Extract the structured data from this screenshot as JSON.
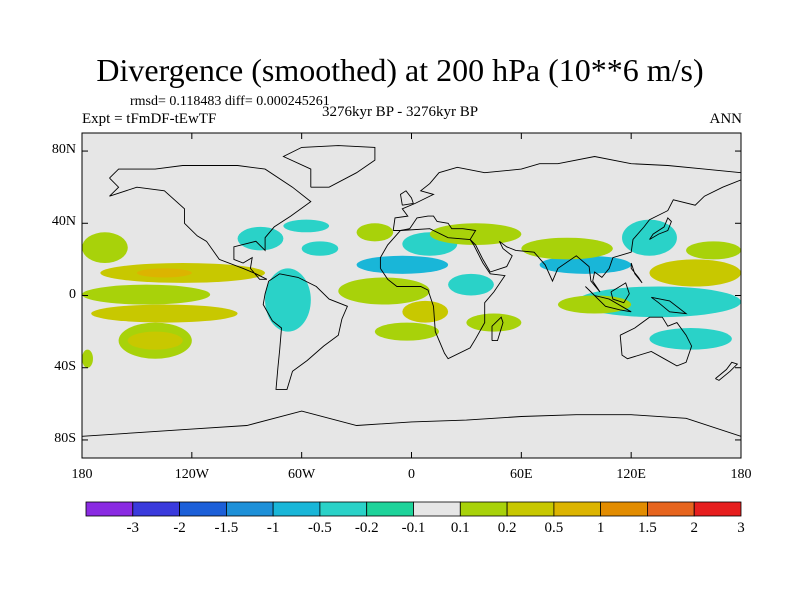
{
  "chart_data": {
    "type": "heatmap",
    "title": "Divergence (smoothed) at 200 hPa (10**6 m/s)",
    "stats": "rmsd= 0.118483  diff= 0.000245261",
    "experiment": "Expt = tFmDF-tEwTF",
    "period": "3276kyr BP - 3276kyr BP",
    "season": "ANN",
    "xlim": [
      -180,
      180
    ],
    "ylim": [
      -90,
      90
    ],
    "x_ticks": [
      {
        "value": -180,
        "label": "180"
      },
      {
        "value": -120,
        "label": "120W"
      },
      {
        "value": -60,
        "label": "60W"
      },
      {
        "value": 0,
        "label": "0"
      },
      {
        "value": 60,
        "label": "60E"
      },
      {
        "value": 120,
        "label": "120E"
      },
      {
        "value": 180,
        "label": "180"
      }
    ],
    "y_ticks": [
      {
        "value": 80,
        "label": "80N"
      },
      {
        "value": 40,
        "label": "40N"
      },
      {
        "value": 0,
        "label": "0"
      },
      {
        "value": -40,
        "label": "40S"
      },
      {
        "value": -80,
        "label": "80S"
      }
    ],
    "colorbar": {
      "labels": [
        "-3",
        "-2",
        "-1.5",
        "-1",
        "-0.5",
        "-0.2",
        "-0.1",
        "0.1",
        "0.2",
        "0.5",
        "1",
        "1.5",
        "2",
        "3"
      ],
      "colors": [
        "#8a2be2",
        "#3a3adc",
        "#1c5fd8",
        "#1e90d8",
        "#19b6d8",
        "#2ad2c8",
        "#1ed39a",
        "#e6e6e6",
        "#a8d20a",
        "#c8c800",
        "#dcb400",
        "#e28c00",
        "#e6641e",
        "#e61e1e"
      ]
    },
    "missing_color": "#e6e6e6",
    "anomaly_regions": [
      {
        "class": 1,
        "lon_min": -180,
        "lon_max": -155,
        "lat_min": 18,
        "lat_max": 35
      },
      {
        "class": 2,
        "lon_min": -170,
        "lon_max": -80,
        "lat_min": 7,
        "lat_max": 18
      },
      {
        "class": 3,
        "lon_min": -150,
        "lon_max": -120,
        "lat_min": 10,
        "lat_max": 15
      },
      {
        "class": 1,
        "lon_min": -180,
        "lon_max": -110,
        "lat_min": -5,
        "lat_max": 6
      },
      {
        "class": 2,
        "lon_min": -175,
        "lon_max": -95,
        "lat_min": -15,
        "lat_max": -5
      },
      {
        "class": 1,
        "lon_min": -160,
        "lon_max": -120,
        "lat_min": -35,
        "lat_max": -15
      },
      {
        "class": 2,
        "lon_min": -155,
        "lon_max": -125,
        "lat_min": -30,
        "lat_max": -20
      },
      {
        "class": 1,
        "lon_min": -180,
        "lon_max": -174,
        "lat_min": -40,
        "lat_max": -30
      },
      {
        "class": -1,
        "lon_min": -95,
        "lon_max": -70,
        "lat_min": 25,
        "lat_max": 38
      },
      {
        "class": -1,
        "lon_min": -70,
        "lon_max": -45,
        "lat_min": 35,
        "lat_max": 42
      },
      {
        "class": -1,
        "lon_min": -60,
        "lon_max": -40,
        "lat_min": 22,
        "lat_max": 30
      },
      {
        "class": -1,
        "lon_min": -80,
        "lon_max": -55,
        "lat_min": -20,
        "lat_max": 15
      },
      {
        "class": 1,
        "lon_min": -40,
        "lon_max": 10,
        "lat_min": -5,
        "lat_max": 10
      },
      {
        "class": -2,
        "lon_min": -30,
        "lon_max": 20,
        "lat_min": 12,
        "lat_max": 22
      },
      {
        "class": 1,
        "lon_min": -30,
        "lon_max": -10,
        "lat_min": 30,
        "lat_max": 40
      },
      {
        "class": -1,
        "lon_min": -5,
        "lon_max": 25,
        "lat_min": 22,
        "lat_max": 35
      },
      {
        "class": 1,
        "lon_min": 10,
        "lon_max": 60,
        "lat_min": 28,
        "lat_max": 40
      },
      {
        "class": -2,
        "lon_min": 70,
        "lon_max": 120,
        "lat_min": 12,
        "lat_max": 22
      },
      {
        "class": 1,
        "lon_min": 60,
        "lon_max": 110,
        "lat_min": 20,
        "lat_max": 32
      },
      {
        "class": -1,
        "lon_min": 115,
        "lon_max": 145,
        "lat_min": 22,
        "lat_max": 42
      },
      {
        "class": 2,
        "lon_min": 130,
        "lon_max": 180,
        "lat_min": 5,
        "lat_max": 20
      },
      {
        "class": 1,
        "lon_min": 150,
        "lon_max": 180,
        "lat_min": 20,
        "lat_max": 30
      },
      {
        "class": -1,
        "lon_min": 90,
        "lon_max": 180,
        "lat_min": -12,
        "lat_max": 5
      },
      {
        "class": 1,
        "lon_min": 80,
        "lon_max": 120,
        "lat_min": -10,
        "lat_max": 0
      },
      {
        "class": -1,
        "lon_min": 130,
        "lon_max": 175,
        "lat_min": -30,
        "lat_max": -18
      },
      {
        "class": 2,
        "lon_min": -5,
        "lon_max": 20,
        "lat_min": -15,
        "lat_max": -3
      },
      {
        "class": 1,
        "lon_min": -20,
        "lon_max": 15,
        "lat_min": -25,
        "lat_max": -15
      },
      {
        "class": 1,
        "lon_min": 30,
        "lon_max": 60,
        "lat_min": -20,
        "lat_max": -10
      },
      {
        "class": -1,
        "lon_min": 20,
        "lon_max": 45,
        "lat_min": 0,
        "lat_max": 12
      }
    ],
    "coastline_note": "world continent outlines"
  }
}
